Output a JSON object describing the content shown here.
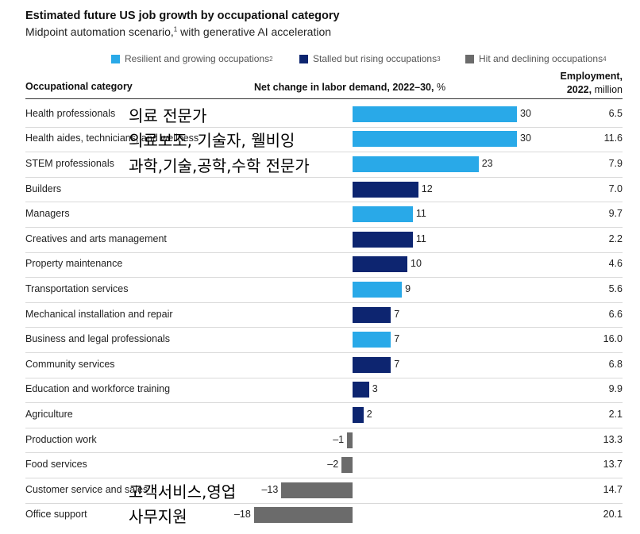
{
  "header": {
    "title": "Estimated future US job growth by occupational category",
    "subtitle": "Midpoint automation scenario,",
    "subtitle_sup": "1",
    "subtitle_rest": " with generative AI acceleration"
  },
  "legend": [
    {
      "label": "Resilient and growing occupations",
      "sup": "2",
      "color": "#29a9e8"
    },
    {
      "label": "Stalled but rising occupations",
      "sup": "3",
      "color": "#0d2570"
    },
    {
      "label": "Hit and declining occupations",
      "sup": "4",
      "color": "#6b6b6b"
    }
  ],
  "columns": {
    "category": "Occupational category",
    "net_change_bold": "Net change in labor demand, 2022–30,",
    "net_change_unit": " %",
    "employment_line1": "Employment,",
    "employment_line2_bold": "2022,",
    "employment_line2_rest": " million"
  },
  "colors": {
    "resilient": "#29a9e8",
    "stalled": "#0d2570",
    "declining": "#6b6b6b"
  },
  "chart_data": {
    "type": "bar",
    "orientation": "horizontal",
    "title": "Estimated future US job growth by occupational category",
    "subtitle": "Midpoint automation scenario, with generative AI acceleration",
    "xlabel": "Net change in labor demand, 2022–30, %",
    "xlim": [
      -18,
      30
    ],
    "grid": false,
    "legend_position": "top-right",
    "categories": [
      "Health professionals",
      "Health aides, technicians, and wellness",
      "STEM professionals",
      "Builders",
      "Managers",
      "Creatives and arts management",
      "Property maintenance",
      "Transportation services",
      "Mechanical installation and repair",
      "Business and legal professionals",
      "Community services",
      "Education and workforce training",
      "Agriculture",
      "Production work",
      "Food services",
      "Customer service and sales",
      "Office support"
    ],
    "values": [
      30,
      30,
      23,
      12,
      11,
      11,
      10,
      9,
      7,
      7,
      7,
      3,
      2,
      -1,
      -2,
      -13,
      -18
    ],
    "value_labels": [
      "30",
      "30",
      "23",
      "12",
      "11",
      "11",
      "10",
      "9",
      "7",
      "7",
      "7",
      "3",
      "2",
      "–1",
      "–2",
      "–13",
      "–18"
    ],
    "groups": [
      "resilient",
      "resilient",
      "resilient",
      "stalled",
      "resilient",
      "stalled",
      "stalled",
      "resilient",
      "stalled",
      "resilient",
      "stalled",
      "stalled",
      "stalled",
      "declining",
      "declining",
      "declining",
      "declining"
    ],
    "employment_2022_million": [
      "6.5",
      "11.6",
      "7.9",
      "7.0",
      "9.7",
      "2.2",
      "4.6",
      "5.6",
      "6.6",
      "16.0",
      "6.8",
      "9.9",
      "2.1",
      "13.3",
      "13.7",
      "14.7",
      "20.1"
    ]
  },
  "annotations": [
    {
      "row": 0,
      "text": "의료 전문가"
    },
    {
      "row": 1,
      "text": "의료보조, 기술자, 웰비잉"
    },
    {
      "row": 2,
      "text": "과학,기술,공학,수학 전문가"
    },
    {
      "row": 15,
      "text": "고객서비스,영업"
    },
    {
      "row": 16,
      "text": "사무지원"
    }
  ]
}
